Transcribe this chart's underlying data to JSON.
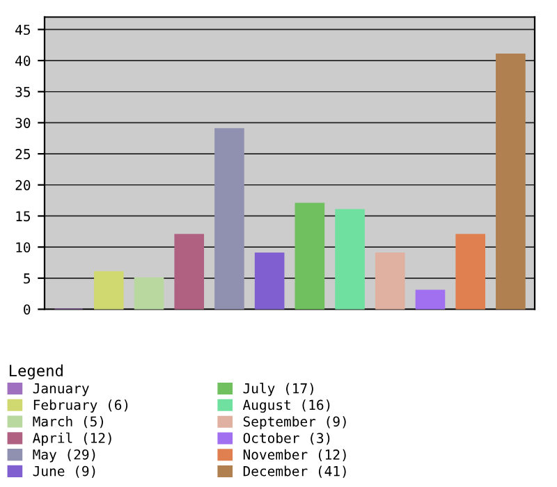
{
  "chart_data": {
    "type": "bar",
    "stacked": true,
    "categories": [
      null,
      null,
      null,
      null,
      null,
      null,
      null,
      null,
      null,
      null,
      null,
      null
    ],
    "series": [
      {
        "name": "January",
        "color": "#a070c0",
        "values": [
          0,
          null,
          null,
          null,
          null,
          null,
          null,
          null,
          null,
          null,
          null,
          null
        ]
      },
      {
        "name": "February (6)",
        "color": "#d0d870",
        "values": [
          null,
          6,
          null,
          null,
          null,
          null,
          null,
          null,
          null,
          null,
          null,
          null
        ]
      },
      {
        "name": "March (5)",
        "color": "#b8d8a0",
        "values": [
          null,
          null,
          5,
          null,
          null,
          null,
          null,
          null,
          null,
          null,
          null,
          null
        ]
      },
      {
        "name": "April (12)",
        "color": "#b06080",
        "values": [
          null,
          null,
          null,
          12,
          null,
          null,
          null,
          null,
          null,
          null,
          null,
          null
        ]
      },
      {
        "name": "May (29)",
        "color": "#9090b0",
        "values": [
          null,
          null,
          null,
          null,
          29,
          null,
          null,
          null,
          null,
          null,
          null,
          null
        ]
      },
      {
        "name": "June (9)",
        "color": "#8060d0",
        "values": [
          null,
          null,
          null,
          null,
          null,
          9,
          null,
          null,
          null,
          null,
          null,
          null
        ]
      },
      {
        "name": "July (17)",
        "color": "#70c060",
        "values": [
          null,
          null,
          null,
          null,
          null,
          null,
          17,
          null,
          null,
          null,
          null,
          null
        ]
      },
      {
        "name": "August (16)",
        "color": "#70e0a0",
        "values": [
          null,
          null,
          null,
          null,
          null,
          null,
          null,
          16,
          null,
          null,
          null,
          null
        ]
      },
      {
        "name": "September (9)",
        "color": "#e0b0a0",
        "values": [
          null,
          null,
          null,
          null,
          null,
          null,
          null,
          null,
          9,
          null,
          null,
          null
        ]
      },
      {
        "name": "October (3)",
        "color": "#a070f0",
        "values": [
          null,
          null,
          null,
          null,
          null,
          null,
          null,
          null,
          null,
          3,
          null,
          null
        ]
      },
      {
        "name": "November (12)",
        "color": "#e08050",
        "values": [
          null,
          null,
          null,
          null,
          null,
          null,
          null,
          null,
          null,
          null,
          12,
          null
        ]
      },
      {
        "name": "December (41)",
        "color": "#b08050",
        "values": [
          null,
          null,
          null,
          null,
          null,
          null,
          null,
          null,
          null,
          null,
          null,
          41
        ]
      }
    ],
    "ylim": [
      0,
      47
    ],
    "yticks": [
      0,
      5,
      10,
      15,
      20,
      25,
      30,
      35,
      40,
      45
    ],
    "grid": "y",
    "legend": "bottom",
    "legend_title": "Legend",
    "tick_labels": "y"
  }
}
